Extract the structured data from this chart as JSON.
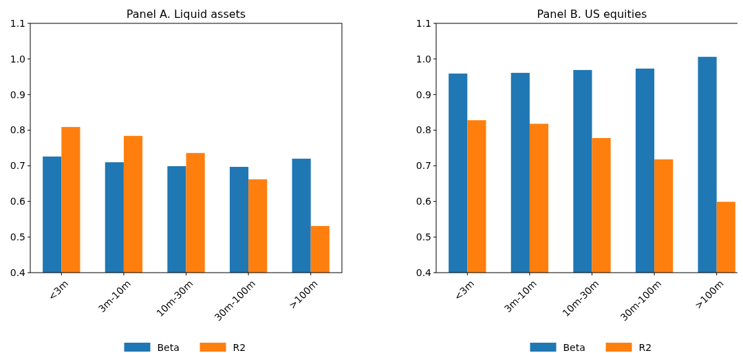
{
  "chart_data": [
    {
      "type": "bar",
      "title": "Panel A. Liquid assets",
      "categories": [
        "<3m",
        "3m-10m",
        "10m-30m",
        "30m-100m",
        ">100m"
      ],
      "series": [
        {
          "name": "Beta",
          "color": "#1f77b4",
          "values": [
            0.726,
            0.71,
            0.699,
            0.697,
            0.72
          ]
        },
        {
          "name": "R2",
          "color": "#ff7f0e",
          "values": [
            0.809,
            0.784,
            0.736,
            0.662,
            0.531
          ]
        }
      ],
      "ylim": [
        0.4,
        1.1
      ],
      "yticks": [
        {
          "value": 0.4,
          "label": "0.4"
        },
        {
          "value": 0.5,
          "label": "0.5"
        },
        {
          "value": 0.6,
          "label": "0.6"
        },
        {
          "value": 0.7,
          "label": "0.7"
        },
        {
          "value": 0.8,
          "label": "0.8"
        },
        {
          "value": 0.9,
          "label": "0.9"
        },
        {
          "value": 1.0,
          "label": "1.0"
        },
        {
          "value": 1.1,
          "label": "1.1"
        }
      ],
      "legend": "bottom"
    },
    {
      "type": "bar",
      "title": "Panel B. US equities",
      "categories": [
        "<3m",
        "3m-10m",
        "10m-30m",
        "30m-100m",
        ">100m"
      ],
      "series": [
        {
          "name": "Beta",
          "color": "#1f77b4",
          "values": [
            0.959,
            0.961,
            0.969,
            0.973,
            1.006
          ]
        },
        {
          "name": "R2",
          "color": "#ff7f0e",
          "values": [
            0.828,
            0.818,
            0.778,
            0.718,
            0.599
          ]
        }
      ],
      "ylim": [
        0.4,
        1.1
      ],
      "yticks": [
        {
          "value": 0.4,
          "label": "0.4"
        },
        {
          "value": 0.5,
          "label": "0.5"
        },
        {
          "value": 0.6,
          "label": "0.6"
        },
        {
          "value": 0.7,
          "label": "0.7"
        },
        {
          "value": 0.8,
          "label": "0.8"
        },
        {
          "value": 0.9,
          "label": "0.9"
        },
        {
          "value": 1.0,
          "label": "1.0"
        },
        {
          "value": 1.1,
          "label": "1.1"
        }
      ],
      "legend": "bottom"
    }
  ]
}
